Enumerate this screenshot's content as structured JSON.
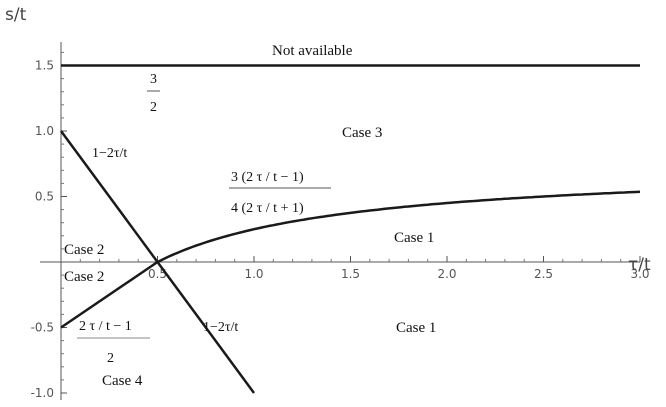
{
  "chart_data": {
    "type": "line",
    "title": "",
    "xlabel": "τ/t",
    "ylabel": "s/t",
    "xlim": [
      0,
      3.0
    ],
    "ylim": [
      -1.0,
      1.6
    ],
    "xticks": [
      "0.5",
      "1.0",
      "1.5",
      "2.0",
      "2.5",
      "3.0"
    ],
    "xtick_values": [
      0.5,
      1.0,
      1.5,
      2.0,
      2.5,
      3.0
    ],
    "yticks": [
      "1.5",
      "1.0",
      "0.5",
      "-0.5",
      "-1.0"
    ],
    "ytick_values": [
      1.5,
      1.0,
      0.5,
      -0.5,
      -1.0
    ],
    "series": [
      {
        "formula_label": "1−2τ/t",
        "x": [
          0.0,
          0.25,
          0.5,
          0.75,
          1.0
        ],
        "y": [
          1.0,
          0.5,
          0.0,
          -0.5,
          -1.0
        ]
      },
      {
        "formula_label": "3(2τ/t−1) / 4(2τ/t+1)",
        "x": [
          0.5,
          0.75,
          1.0,
          1.25,
          1.5,
          2.0,
          2.5,
          3.0
        ],
        "y": [
          0.0,
          0.15,
          0.25,
          0.321,
          0.375,
          0.45,
          0.5,
          0.536
        ]
      },
      {
        "formula_label": "2τ/t − 1 over 2",
        "x": [
          0.0,
          0.5
        ],
        "y": [
          -0.5,
          0.0
        ]
      },
      {
        "formula_label": "3/2",
        "x": [
          0.0,
          3.0
        ],
        "y": [
          1.5,
          1.5
        ]
      }
    ],
    "annotations": {
      "not_available": "Not available",
      "three": "3",
      "two": "2",
      "case3": "Case 3",
      "formula_upper": "1−2τ/t",
      "frac_num": "3 (2 τ / t − 1)",
      "frac_den": "4 (2 τ / t + 1)",
      "case2_upper": "Case 2",
      "case2_lower": "Case 2",
      "case1_upper": "Case 1",
      "formula_lower": "1−2τ/t",
      "left_num": "2 τ / t − 1",
      "left_den": "2",
      "case1_lower": "Case 1",
      "case4": "Case 4"
    }
  }
}
